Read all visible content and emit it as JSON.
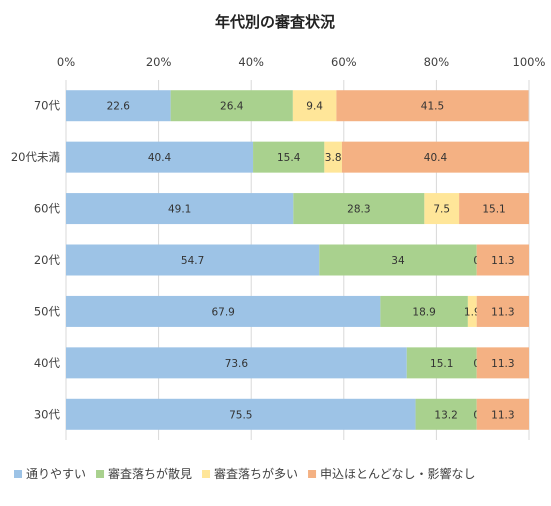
{
  "chart_data": {
    "type": "bar",
    "orientation": "horizontal",
    "stacked": true,
    "percent": true,
    "title": "年代別の審査状況",
    "xlim": [
      0,
      100
    ],
    "x_ticks": [
      "0%",
      "20%",
      "40%",
      "60%",
      "80%",
      "100%"
    ],
    "grid": "vertical",
    "legend_position": "bottom",
    "categories": [
      "70代",
      "20代未満",
      "60代",
      "20代",
      "50代",
      "40代",
      "30代"
    ],
    "series": [
      {
        "name": "通りやすい",
        "color": "#9DC3E6",
        "values": [
          22.6,
          40.4,
          49.1,
          54.7,
          67.9,
          73.6,
          75.5
        ]
      },
      {
        "name": "審査落ちが散見",
        "color": "#A9D18E",
        "values": [
          26.4,
          15.4,
          28.3,
          34,
          18.9,
          15.1,
          13.2
        ]
      },
      {
        "name": "審査落ちが多い",
        "color": "#FFE699",
        "values": [
          9.4,
          3.8,
          7.5,
          0,
          1.9,
          0,
          0
        ]
      },
      {
        "name": "申込ほとんどなし・影響なし",
        "color": "#F4B183",
        "values": [
          41.5,
          40.4,
          15.1,
          11.3,
          11.3,
          11.3,
          11.3
        ]
      }
    ],
    "data_labels": [
      [
        "22.6",
        "26.4",
        "9.4",
        "41.5"
      ],
      [
        "40.4",
        "15.4",
        "3.8",
        "40.4"
      ],
      [
        "49.1",
        "28.3",
        "7.5",
        "15.1"
      ],
      [
        "54.7",
        "34",
        "0",
        "11.3"
      ],
      [
        "67.9",
        "18.9",
        "1.9",
        "11.3"
      ],
      [
        "73.6",
        "15.1",
        "0",
        "11.3"
      ],
      [
        "75.5",
        "13.2",
        "0",
        "11.3"
      ]
    ]
  }
}
